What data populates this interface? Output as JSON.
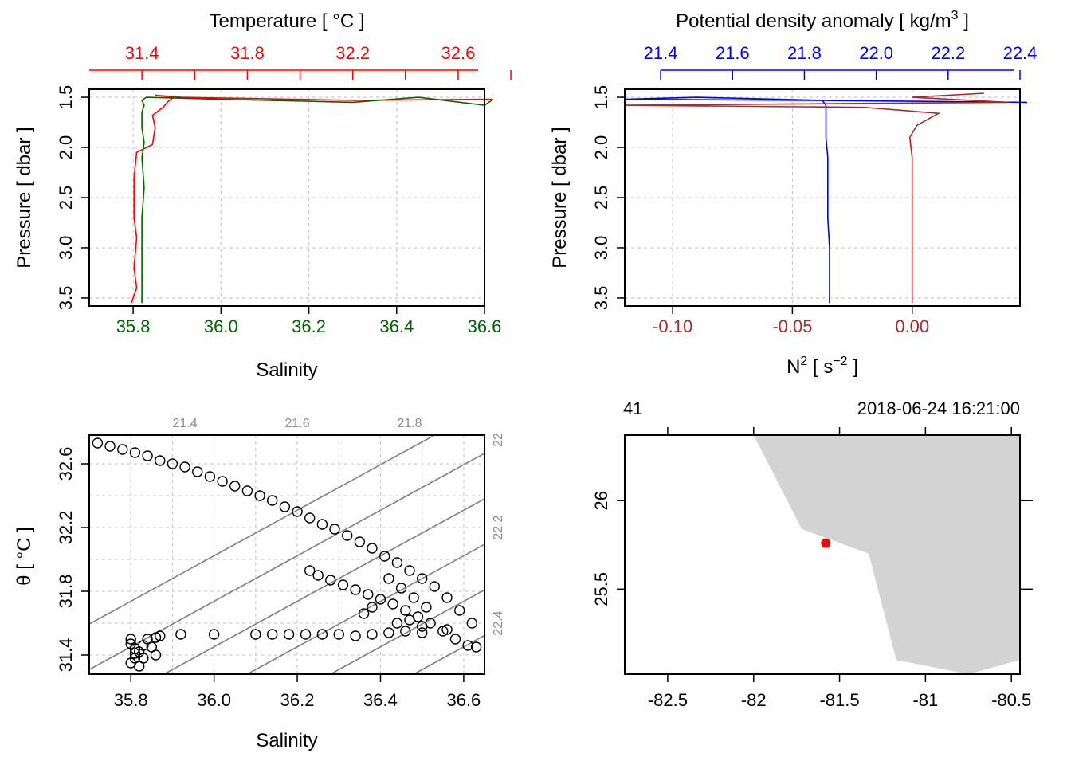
{
  "colors": {
    "temperature": "#ff0000",
    "salinity": "#006400",
    "density": "#0000ff",
    "n2": "#a52a2a",
    "coast": "#d3d3d3",
    "station": "#ff0000",
    "isopycnal": "#7f7f7f"
  },
  "chart_data": [
    {
      "type": "line",
      "panel": "temperature-salinity profile",
      "ylabel": "Pressure [ dbar ]",
      "ylim": [
        3.58,
        1.42
      ],
      "y_ticks": [
        "1.5",
        "2.0",
        "2.5",
        "3.0",
        "3.5"
      ],
      "grid": true,
      "axes": {
        "top": {
          "label": "Temperature [ °C ]",
          "range": [
            31.2,
            32.7
          ],
          "ticks": [
            "31.4",
            "31.8",
            "32.2",
            "32.6"
          ]
        },
        "bottom": {
          "label": "Salinity",
          "range": [
            35.7,
            36.6
          ],
          "ticks": [
            "35.8",
            "36.0",
            "36.2",
            "36.4",
            "36.6"
          ]
        }
      },
      "series": [
        {
          "axis": "top",
          "values": [
            {
              "y": 3.55,
              "x": 31.36
            },
            {
              "y": 3.4,
              "x": 31.38
            },
            {
              "y": 3.2,
              "x": 31.37
            },
            {
              "y": 2.9,
              "x": 31.38
            },
            {
              "y": 2.7,
              "x": 31.37
            },
            {
              "y": 2.5,
              "x": 31.37
            },
            {
              "y": 2.3,
              "x": 31.37
            },
            {
              "y": 2.05,
              "x": 31.38
            },
            {
              "y": 1.97,
              "x": 31.44
            },
            {
              "y": 1.8,
              "x": 31.45
            },
            {
              "y": 1.68,
              "x": 31.44
            },
            {
              "y": 1.6,
              "x": 31.48
            },
            {
              "y": 1.54,
              "x": 31.5
            },
            {
              "y": 1.5,
              "x": 31.52
            },
            {
              "y": 1.48,
              "x": 31.45
            },
            {
              "y": 1.5,
              "x": 31.55
            },
            {
              "y": 1.53,
              "x": 32.2
            },
            {
              "y": 1.52,
              "x": 32.73
            }
          ]
        },
        {
          "axis": "bottom",
          "values": [
            {
              "y": 3.55,
              "x": 35.82
            },
            {
              "y": 3.3,
              "x": 35.82
            },
            {
              "y": 3.0,
              "x": 35.82
            },
            {
              "y": 2.7,
              "x": 35.82
            },
            {
              "y": 2.4,
              "x": 35.825
            },
            {
              "y": 2.1,
              "x": 35.82
            },
            {
              "y": 1.95,
              "x": 35.825
            },
            {
              "y": 1.8,
              "x": 35.82
            },
            {
              "y": 1.65,
              "x": 35.82
            },
            {
              "y": 1.58,
              "x": 35.825
            },
            {
              "y": 1.53,
              "x": 35.82
            },
            {
              "y": 1.5,
              "x": 35.83
            },
            {
              "y": 1.52,
              "x": 36.0
            },
            {
              "y": 1.55,
              "x": 36.3
            },
            {
              "y": 1.5,
              "x": 36.45
            },
            {
              "y": 1.58,
              "x": 36.6
            },
            {
              "y": 1.52,
              "x": 36.62
            }
          ]
        }
      ]
    },
    {
      "type": "line",
      "panel": "density-stratification profile",
      "ylabel": "Pressure [ dbar ]",
      "ylim": [
        3.58,
        1.42
      ],
      "y_ticks": [
        "1.5",
        "2.0",
        "2.5",
        "3.0",
        "3.5"
      ],
      "grid": true,
      "axes": {
        "top": {
          "label": "Potential density anomaly [ kg/m",
          "label_sup": "3",
          "label_end": " ]",
          "range": [
            21.3,
            22.4
          ],
          "ticks": [
            "21.4",
            "21.6",
            "21.8",
            "22.0",
            "22.2",
            "22.4"
          ]
        },
        "bottom": {
          "label": "N",
          "label_sup": "2",
          "label_mid": " [ s",
          "label_sup2": "−2",
          "label_end": " ]",
          "range": [
            -0.12,
            0.045
          ],
          "ticks": [
            "-0.10",
            "-0.05",
            "0.00"
          ]
        }
      },
      "series": [
        {
          "axis": "top",
          "values": [
            {
              "y": 3.55,
              "x": 21.87
            },
            {
              "y": 3.3,
              "x": 21.87
            },
            {
              "y": 3.0,
              "x": 21.87
            },
            {
              "y": 2.7,
              "x": 21.865
            },
            {
              "y": 2.4,
              "x": 21.865
            },
            {
              "y": 2.1,
              "x": 21.865
            },
            {
              "y": 1.9,
              "x": 21.86
            },
            {
              "y": 1.7,
              "x": 21.86
            },
            {
              "y": 1.58,
              "x": 21.86
            },
            {
              "y": 1.53,
              "x": 21.85
            },
            {
              "y": 1.5,
              "x": 21.5
            },
            {
              "y": 1.52,
              "x": 21.3
            },
            {
              "y": 1.53,
              "x": 21.8
            },
            {
              "y": 1.55,
              "x": 22.42
            }
          ]
        },
        {
          "axis": "bottom",
          "values": [
            {
              "y": 3.55,
              "x": 0.0
            },
            {
              "y": 3.3,
              "x": 0.0
            },
            {
              "y": 3.0,
              "x": 0.0
            },
            {
              "y": 2.7,
              "x": 0.0
            },
            {
              "y": 2.4,
              "x": 0.0
            },
            {
              "y": 2.1,
              "x": 0.0
            },
            {
              "y": 1.9,
              "x": -0.001
            },
            {
              "y": 1.78,
              "x": 0.002
            },
            {
              "y": 1.66,
              "x": 0.011
            },
            {
              "y": 1.6,
              "x": -0.02
            },
            {
              "y": 1.58,
              "x": -0.12
            },
            {
              "y": 1.55,
              "x": 0.04
            },
            {
              "y": 1.5,
              "x": 0.0
            },
            {
              "y": 1.46,
              "x": 0.03
            }
          ]
        }
      ]
    },
    {
      "type": "scatter",
      "panel": "T-S diagram",
      "xlabel": "Salinity",
      "ylabel": "θ [ °C ]",
      "xlim": [
        35.7,
        36.65
      ],
      "ylim": [
        31.28,
        32.78
      ],
      "x_ticks": [
        "35.8",
        "36.0",
        "36.2",
        "36.4",
        "36.6"
      ],
      "y_ticks": [
        "31.4",
        "31.8",
        "32.2",
        "32.6"
      ],
      "grid": true,
      "isopycnals": {
        "top_labels": [
          "21.4",
          "21.6",
          "21.8"
        ],
        "right_labels": [
          "22",
          "22.2",
          "22.4"
        ]
      },
      "points": [
        [
          35.72,
          32.73
        ],
        [
          35.75,
          32.71
        ],
        [
          35.78,
          32.69
        ],
        [
          35.81,
          32.67
        ],
        [
          35.84,
          32.65
        ],
        [
          35.87,
          32.62
        ],
        [
          35.9,
          32.6
        ],
        [
          35.93,
          32.58
        ],
        [
          35.96,
          32.55
        ],
        [
          35.99,
          32.52
        ],
        [
          36.02,
          32.49
        ],
        [
          36.05,
          32.46
        ],
        [
          36.08,
          32.43
        ],
        [
          36.11,
          32.4
        ],
        [
          36.14,
          32.37
        ],
        [
          36.17,
          32.33
        ],
        [
          36.2,
          32.3
        ],
        [
          36.23,
          32.26
        ],
        [
          36.26,
          32.22
        ],
        [
          36.29,
          32.19
        ],
        [
          36.32,
          32.15
        ],
        [
          36.35,
          32.11
        ],
        [
          36.38,
          32.07
        ],
        [
          36.41,
          32.02
        ],
        [
          36.44,
          31.98
        ],
        [
          36.47,
          31.93
        ],
        [
          36.5,
          31.88
        ],
        [
          36.53,
          31.83
        ],
        [
          36.56,
          31.76
        ],
        [
          36.59,
          31.68
        ],
        [
          36.62,
          31.6
        ],
        [
          36.23,
          31.93
        ],
        [
          36.25,
          31.9
        ],
        [
          36.28,
          31.87
        ],
        [
          36.31,
          31.84
        ],
        [
          36.34,
          31.81
        ],
        [
          36.37,
          31.78
        ],
        [
          36.4,
          31.75
        ],
        [
          36.43,
          31.72
        ],
        [
          36.46,
          31.68
        ],
        [
          36.49,
          31.64
        ],
        [
          36.52,
          31.6
        ],
        [
          36.55,
          31.55
        ],
        [
          36.58,
          31.5
        ],
        [
          36.61,
          31.46
        ],
        [
          36.63,
          31.45
        ],
        [
          36.42,
          31.88
        ],
        [
          36.45,
          31.82
        ],
        [
          36.48,
          31.76
        ],
        [
          36.51,
          31.7
        ],
        [
          36.44,
          31.6
        ],
        [
          36.5,
          31.58
        ],
        [
          36.56,
          31.56
        ],
        [
          36.38,
          31.7
        ],
        [
          36.36,
          31.66
        ],
        [
          36.47,
          31.62
        ],
        [
          36.14,
          31.53
        ],
        [
          36.18,
          31.53
        ],
        [
          36.22,
          31.53
        ],
        [
          36.26,
          31.53
        ],
        [
          36.3,
          31.53
        ],
        [
          36.34,
          31.52
        ],
        [
          36.38,
          31.53
        ],
        [
          36.42,
          31.54
        ],
        [
          36.46,
          31.55
        ],
        [
          36.5,
          31.54
        ],
        [
          35.8,
          31.5
        ],
        [
          35.8,
          31.47
        ],
        [
          35.81,
          31.44
        ],
        [
          35.81,
          31.41
        ],
        [
          35.81,
          31.38
        ],
        [
          35.8,
          31.35
        ],
        [
          35.82,
          31.33
        ],
        [
          35.82,
          31.42
        ],
        [
          35.83,
          31.46
        ],
        [
          35.83,
          31.38
        ],
        [
          35.84,
          31.5
        ],
        [
          35.85,
          31.45
        ],
        [
          35.86,
          31.4
        ],
        [
          35.86,
          31.51
        ],
        [
          35.87,
          31.52
        ],
        [
          35.92,
          31.53
        ],
        [
          36.0,
          31.53
        ],
        [
          36.1,
          31.53
        ]
      ]
    },
    {
      "type": "map",
      "panel": "station map",
      "x_ticks": [
        "-82.5",
        "-82",
        "-81.5",
        "-81",
        "-80.5"
      ],
      "y_ticks": [
        "25.5",
        "26"
      ],
      "xlim": [
        -82.75,
        -80.45
      ],
      "ylim": [
        25.02,
        26.37
      ],
      "top_left_text": "41",
      "top_right_text": "2018-06-24 16:21:00",
      "station": {
        "lon": -81.58,
        "lat": 25.76
      },
      "coastline": [
        [
          -82.0,
          26.37
        ],
        [
          -81.72,
          25.84
        ],
        [
          -81.33,
          25.7
        ],
        [
          -81.17,
          25.1
        ],
        [
          -80.75,
          25.02
        ],
        [
          -80.45,
          25.1
        ],
        [
          -80.45,
          26.37
        ]
      ]
    }
  ]
}
